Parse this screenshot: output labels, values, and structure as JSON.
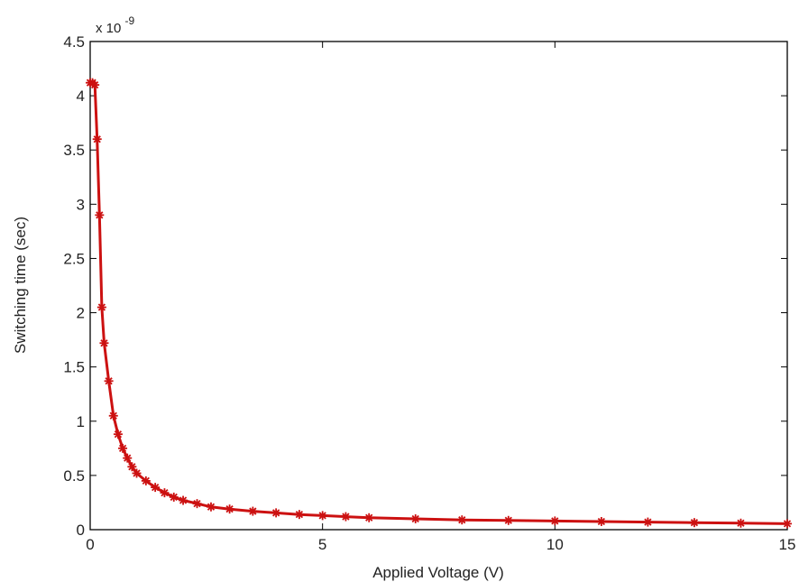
{
  "chart_data": {
    "type": "line",
    "title": "",
    "xlabel": "Applied Voltage (V)",
    "ylabel": "Switching time (sec)",
    "y_exponent_label": {
      "base": "x 10",
      "power": "-9"
    },
    "xlim": [
      0,
      15
    ],
    "ylim": [
      0,
      4.5
    ],
    "x_ticks": [
      0,
      5,
      10,
      15
    ],
    "x_tick_labels": [
      "0",
      "5",
      "10",
      "15"
    ],
    "y_ticks": [
      0,
      0.5,
      1,
      1.5,
      2,
      2.5,
      3,
      3.5,
      4,
      4.5
    ],
    "y_tick_labels": [
      "0",
      "0.5",
      "1",
      "1.5",
      "2",
      "2.5",
      "3",
      "3.5",
      "4",
      "4.5"
    ],
    "grid": false,
    "legend": "none",
    "marker": "asterisk",
    "series": [
      {
        "color": "#cc1111",
        "x": [
          0.0,
          0.05,
          0.1,
          0.15,
          0.2,
          0.25,
          0.3,
          0.4,
          0.5,
          0.6,
          0.7,
          0.8,
          0.9,
          1.0,
          1.2,
          1.4,
          1.6,
          1.8,
          2.0,
          2.3,
          2.6,
          3.0,
          3.5,
          4.0,
          4.5,
          5.0,
          5.5,
          6.0,
          7.0,
          8.0,
          9.0,
          10.0,
          11.0,
          12.0,
          13.0,
          14.0,
          15.0
        ],
        "y": [
          4.12,
          4.12,
          4.1,
          3.6,
          2.9,
          2.05,
          1.72,
          1.37,
          1.05,
          0.88,
          0.75,
          0.66,
          0.58,
          0.52,
          0.45,
          0.39,
          0.34,
          0.3,
          0.27,
          0.24,
          0.21,
          0.19,
          0.17,
          0.155,
          0.14,
          0.13,
          0.12,
          0.11,
          0.1,
          0.09,
          0.085,
          0.08,
          0.075,
          0.07,
          0.065,
          0.06,
          0.055
        ]
      }
    ]
  }
}
